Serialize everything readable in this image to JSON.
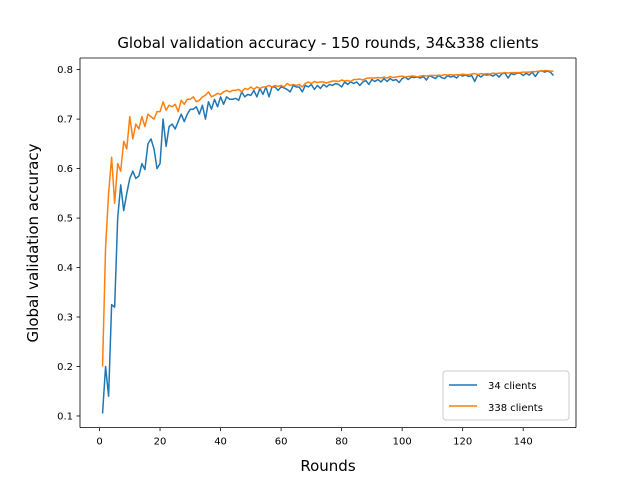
{
  "chart_data": {
    "type": "line",
    "title": "Global validation accuracy - 150 rounds, 34&338 clients",
    "xlabel": "Rounds",
    "ylabel": "Global validation accuracy",
    "xlim": [
      -6.45,
      157.45
    ],
    "ylim": [
      0.0765,
      0.8235
    ],
    "xticks": [
      0,
      20,
      40,
      60,
      80,
      100,
      120,
      140
    ],
    "yticks": [
      0.1,
      0.2,
      0.3,
      0.4,
      0.5,
      0.6,
      0.7,
      0.8
    ],
    "grid": false,
    "legend_position": "lower-right",
    "series": [
      {
        "name": "34 clients",
        "color": "#1f77b4",
        "values": [
          0.105,
          0.2,
          0.14,
          0.325,
          0.32,
          0.5,
          0.567,
          0.515,
          0.55,
          0.58,
          0.595,
          0.58,
          0.585,
          0.61,
          0.598,
          0.65,
          0.66,
          0.64,
          0.6,
          0.61,
          0.7,
          0.645,
          0.685,
          0.69,
          0.68,
          0.695,
          0.71,
          0.695,
          0.71,
          0.72,
          0.72,
          0.725,
          0.71,
          0.728,
          0.7,
          0.735,
          0.72,
          0.74,
          0.725,
          0.745,
          0.73,
          0.745,
          0.74,
          0.74,
          0.742,
          0.738,
          0.755,
          0.745,
          0.75,
          0.748,
          0.758,
          0.745,
          0.762,
          0.75,
          0.765,
          0.745,
          0.765,
          0.765,
          0.758,
          0.765,
          0.763,
          0.76,
          0.755,
          0.768,
          0.765,
          0.765,
          0.755,
          0.768,
          0.765,
          0.77,
          0.76,
          0.768,
          0.762,
          0.77,
          0.765,
          0.77,
          0.768,
          0.772,
          0.77,
          0.765,
          0.775,
          0.77,
          0.775,
          0.772,
          0.775,
          0.768,
          0.775,
          0.778,
          0.77,
          0.78,
          0.776,
          0.78,
          0.775,
          0.782,
          0.776,
          0.782,
          0.778,
          0.78,
          0.774,
          0.782,
          0.785,
          0.78,
          0.785,
          0.784,
          0.785,
          0.783,
          0.786,
          0.779,
          0.788,
          0.785,
          0.782,
          0.788,
          0.784,
          0.782,
          0.788,
          0.785,
          0.787,
          0.783,
          0.79,
          0.787,
          0.789,
          0.786,
          0.788,
          0.776,
          0.79,
          0.785,
          0.79,
          0.789,
          0.79,
          0.787,
          0.791,
          0.785,
          0.792,
          0.793,
          0.783,
          0.792,
          0.79,
          0.793,
          0.793,
          0.788,
          0.793,
          0.789,
          0.795,
          0.786,
          0.795,
          0.798,
          0.795,
          0.797,
          0.795,
          0.788
        ]
      },
      {
        "name": "338 clients",
        "color": "#ff7f0e",
        "values": [
          0.2,
          0.44,
          0.55,
          0.623,
          0.53,
          0.61,
          0.595,
          0.655,
          0.64,
          0.705,
          0.66,
          0.69,
          0.68,
          0.705,
          0.685,
          0.71,
          0.705,
          0.7,
          0.715,
          0.715,
          0.735,
          0.718,
          0.728,
          0.725,
          0.73,
          0.715,
          0.738,
          0.73,
          0.74,
          0.74,
          0.745,
          0.735,
          0.738,
          0.745,
          0.748,
          0.755,
          0.745,
          0.748,
          0.752,
          0.75,
          0.755,
          0.758,
          0.755,
          0.758,
          0.758,
          0.76,
          0.755,
          0.762,
          0.76,
          0.765,
          0.76,
          0.765,
          0.762,
          0.765,
          0.765,
          0.768,
          0.765,
          0.768,
          0.766,
          0.768,
          0.765,
          0.772,
          0.768,
          0.77,
          0.768,
          0.77,
          0.765,
          0.772,
          0.775,
          0.772,
          0.776,
          0.774,
          0.775,
          0.775,
          0.773,
          0.775,
          0.777,
          0.777,
          0.776,
          0.779,
          0.777,
          0.778,
          0.776,
          0.78,
          0.78,
          0.781,
          0.779,
          0.782,
          0.783,
          0.783,
          0.783,
          0.784,
          0.783,
          0.785,
          0.783,
          0.786,
          0.784,
          0.785,
          0.786,
          0.787,
          0.785,
          0.786,
          0.787,
          0.787,
          0.785,
          0.787,
          0.788,
          0.787,
          0.788,
          0.788,
          0.788,
          0.789,
          0.788,
          0.79,
          0.789,
          0.79,
          0.789,
          0.79,
          0.789,
          0.791,
          0.79,
          0.79,
          0.791,
          0.792,
          0.79,
          0.792,
          0.791,
          0.792,
          0.791,
          0.793,
          0.792,
          0.793,
          0.793,
          0.794,
          0.793,
          0.794,
          0.794,
          0.794,
          0.794,
          0.795,
          0.795,
          0.795,
          0.796,
          0.796,
          0.797,
          0.797,
          0.798,
          0.798,
          0.797,
          0.797
        ]
      }
    ]
  }
}
